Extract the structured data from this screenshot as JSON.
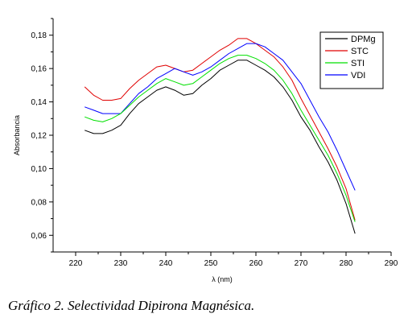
{
  "chart_data": {
    "type": "line",
    "xlabel": "λ (nm)",
    "ylabel": "Absorbancia",
    "xlim": [
      215,
      290
    ],
    "ylim": [
      0.05,
      0.19
    ],
    "x_ticks": [
      "220",
      "230",
      "240",
      "250",
      "260",
      "270",
      "280",
      "290"
    ],
    "y_ticks": [
      "0,06",
      "0,08",
      "0,10",
      "0,12",
      "0,14",
      "0,16",
      "0,18"
    ],
    "x_tick_values": [
      220,
      230,
      240,
      250,
      260,
      270,
      280,
      290
    ],
    "y_tick_values": [
      0.06,
      0.08,
      0.1,
      0.12,
      0.14,
      0.16,
      0.18
    ],
    "legend_position": "top-right",
    "series": [
      {
        "name": "DPMg",
        "color": "#000000",
        "x": [
          222,
          224,
          226,
          228,
          230,
          232,
          234,
          236,
          238,
          240,
          242,
          244,
          246,
          248,
          250,
          252,
          254,
          256,
          258,
          260,
          262,
          264,
          266,
          268,
          270,
          272,
          274,
          276,
          278,
          280,
          282
        ],
        "values": [
          0.123,
          0.121,
          0.121,
          0.123,
          0.126,
          0.133,
          0.139,
          0.143,
          0.147,
          0.149,
          0.147,
          0.144,
          0.145,
          0.15,
          0.154,
          0.159,
          0.162,
          0.165,
          0.165,
          0.162,
          0.159,
          0.155,
          0.149,
          0.141,
          0.131,
          0.123,
          0.113,
          0.104,
          0.093,
          0.079,
          0.061
        ]
      },
      {
        "name": "STC",
        "color": "#e00000",
        "x": [
          222,
          224,
          226,
          228,
          230,
          232,
          234,
          236,
          238,
          240,
          242,
          244,
          246,
          248,
          250,
          252,
          254,
          256,
          258,
          260,
          262,
          264,
          266,
          268,
          270,
          272,
          274,
          276,
          278,
          280,
          282
        ],
        "values": [
          0.149,
          0.144,
          0.141,
          0.141,
          0.142,
          0.148,
          0.153,
          0.157,
          0.161,
          0.162,
          0.16,
          0.158,
          0.159,
          0.163,
          0.167,
          0.171,
          0.174,
          0.178,
          0.178,
          0.175,
          0.171,
          0.167,
          0.161,
          0.153,
          0.142,
          0.132,
          0.122,
          0.112,
          0.101,
          0.088,
          0.069
        ]
      },
      {
        "name": "STI",
        "color": "#00e000",
        "x": [
          222,
          224,
          226,
          228,
          230,
          232,
          234,
          236,
          238,
          240,
          242,
          244,
          246,
          248,
          250,
          252,
          254,
          256,
          258,
          260,
          262,
          264,
          266,
          268,
          270,
          272,
          274,
          276,
          278,
          280,
          282
        ],
        "values": [
          0.131,
          0.129,
          0.128,
          0.13,
          0.133,
          0.138,
          0.143,
          0.147,
          0.151,
          0.154,
          0.152,
          0.15,
          0.151,
          0.155,
          0.159,
          0.163,
          0.166,
          0.168,
          0.168,
          0.166,
          0.163,
          0.159,
          0.153,
          0.145,
          0.135,
          0.126,
          0.117,
          0.108,
          0.097,
          0.084,
          0.068
        ]
      },
      {
        "name": "VDI",
        "color": "#0000ff",
        "x": [
          222,
          224,
          226,
          228,
          230,
          232,
          234,
          236,
          238,
          240,
          242,
          244,
          246,
          248,
          250,
          252,
          254,
          256,
          258,
          260,
          262,
          264,
          266,
          268,
          270,
          272,
          274,
          276,
          278,
          280,
          282
        ],
        "values": [
          0.137,
          0.135,
          0.133,
          0.133,
          0.133,
          0.139,
          0.145,
          0.149,
          0.154,
          0.157,
          0.16,
          0.158,
          0.156,
          0.158,
          0.161,
          0.165,
          0.169,
          0.172,
          0.175,
          0.175,
          0.173,
          0.169,
          0.165,
          0.158,
          0.151,
          0.141,
          0.131,
          0.122,
          0.111,
          0.099,
          0.087
        ]
      }
    ]
  },
  "caption": "Gráfico 2. Selectividad Dipirona Magnésica."
}
